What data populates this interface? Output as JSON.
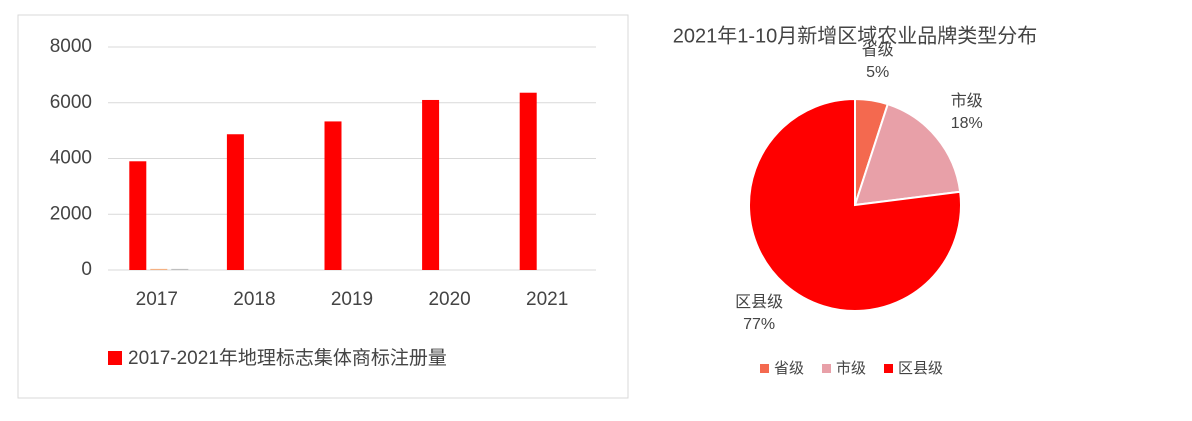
{
  "chart_data": [
    {
      "type": "bar",
      "categories": [
        "2017",
        "2018",
        "2019",
        "2020",
        "2021"
      ],
      "series": [
        {
          "name": "2017-2021年地理标志集体商标注册量",
          "color": "#ff0000",
          "values": [
            3900,
            4870,
            5330,
            6100,
            6360
          ]
        },
        {
          "color": "#f4b183",
          "values": [
            40,
            null,
            null,
            null,
            null
          ]
        },
        {
          "color": "#bfbfbf",
          "values": [
            40,
            null,
            null,
            null,
            null
          ]
        }
      ],
      "ylim": [
        0,
        8000
      ],
      "yticks": [
        0,
        2000,
        4000,
        6000,
        8000
      ],
      "grid": true,
      "legend": "bottom"
    },
    {
      "type": "pie",
      "title": "2021年1-10月新增区域农业品牌类型分布",
      "categories": [
        "省级",
        "市级",
        "区县级"
      ],
      "values": [
        5,
        18,
        77
      ],
      "value_labels": [
        "5%",
        "18%",
        "77%"
      ],
      "colors": [
        "#f4694f",
        "#e8a0a8",
        "#ff0000"
      ],
      "legend": "bottom"
    }
  ]
}
